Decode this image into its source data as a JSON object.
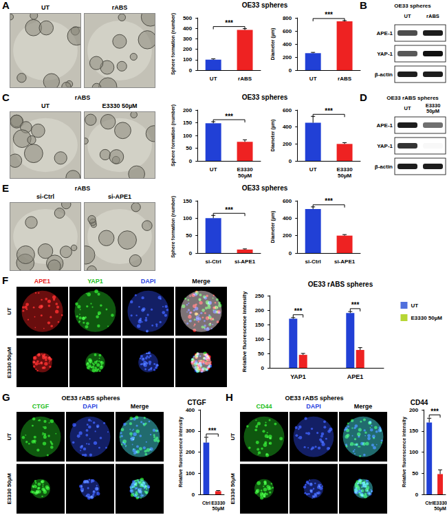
{
  "figure": {
    "A": {
      "image_columns": [
        "UT",
        "rABS"
      ],
      "chart_heading": "OE33 spheres"
    },
    "B": {
      "blot_title": "OE33 spheres",
      "lanes": [
        "UT",
        "rABS"
      ],
      "rows": [
        "APE-1",
        "YAP-1",
        "β-actin"
      ],
      "intensity": [
        [
          0.75,
          0.95
        ],
        [
          0.7,
          1.0
        ],
        [
          0.95,
          0.95
        ]
      ]
    },
    "C": {
      "image_heading": "rABS",
      "image_columns": [
        "UT",
        "E3330 50µM"
      ],
      "chart_heading": "OE33 spheres"
    },
    "D": {
      "blot_title": "OE33 rABS spheres",
      "lanes": [
        "UT",
        "E3330 50µM"
      ],
      "rows": [
        "APE-1",
        "YAP-1",
        "β-actin"
      ],
      "intensity": [
        [
          0.95,
          0.6
        ],
        [
          0.85,
          0.03
        ],
        [
          0.95,
          0.95
        ]
      ]
    },
    "E": {
      "image_heading": "rABS",
      "image_columns": [
        "si-Ctrl",
        "si-APE1"
      ],
      "chart_heading": "OE33 spheres"
    },
    "F": {
      "channels": [
        {
          "name": "APE1",
          "color": "#e82020"
        },
        {
          "name": "YAP1",
          "color": "#22c022"
        },
        {
          "name": "DAPI",
          "color": "#2a44e0"
        },
        {
          "name": "Merge",
          "color": "#000000"
        }
      ],
      "image_rows": [
        "UT",
        "E3330 50µM"
      ]
    },
    "G": {
      "image_heading": "OE33 rABS spheres",
      "channels": [
        {
          "name": "CTGF",
          "color": "#22c022"
        },
        {
          "name": "DAPI",
          "color": "#2a44e0"
        },
        {
          "name": "Merge",
          "color": "#000000"
        }
      ],
      "image_rows": [
        "UT",
        "E3330 50µM"
      ]
    },
    "H": {
      "image_heading": "OE33 rABS spheres",
      "channels": [
        {
          "name": "CD44",
          "color": "#22c022"
        },
        {
          "name": "DAPI",
          "color": "#2a44e0"
        },
        {
          "name": "Merge",
          "color": "#000000"
        }
      ],
      "image_rows": [
        "UT",
        "E3330 50µM"
      ]
    }
  },
  "chart_data": [
    {
      "type": "bar",
      "ylabel": "Sphere formation (number)",
      "categories": [
        "UT",
        "rABS"
      ],
      "values": [
        100,
        385
      ],
      "errors": [
        8,
        12
      ],
      "colors": [
        "#2140d6",
        "#ee2222"
      ],
      "ylim": [
        0,
        500
      ],
      "yticks": [
        0,
        100,
        200,
        300,
        400,
        500
      ],
      "grid": false,
      "annotations": [
        "***"
      ]
    },
    {
      "type": "bar",
      "ylabel": "Diameter (µm)",
      "categories": [
        "UT",
        "rABS"
      ],
      "values": [
        260,
        748
      ],
      "errors": [
        12,
        10
      ],
      "colors": [
        "#2140d6",
        "#ee2222"
      ],
      "ylim": [
        0,
        800
      ],
      "yticks": [
        0,
        200,
        400,
        600,
        800
      ],
      "grid": false,
      "annotations": [
        "***"
      ]
    },
    {
      "type": "bar",
      "ylabel": "Sphere formation (number)",
      "categories": [
        "UT",
        "E3330 50µM"
      ],
      "values": [
        148,
        75
      ],
      "errors": [
        6,
        8
      ],
      "colors": [
        "#2140d6",
        "#ee2222"
      ],
      "ylim": [
        0,
        200
      ],
      "yticks": [
        0,
        50,
        100,
        150,
        200
      ],
      "grid": false,
      "annotations": [
        "***"
      ]
    },
    {
      "type": "bar",
      "ylabel": "Diameter (µm)",
      "categories": [
        "UT",
        "E3330 50µM"
      ],
      "values": [
        450,
        200
      ],
      "errors": [
        75,
        15
      ],
      "colors": [
        "#2140d6",
        "#ee2222"
      ],
      "ylim": [
        0,
        600
      ],
      "yticks": [
        0,
        200,
        400,
        600
      ],
      "grid": false,
      "annotations": [
        "***"
      ]
    },
    {
      "type": "bar",
      "ylabel": "Sphere formation (number)",
      "categories": [
        "si-Ctrl",
        "si-APE1"
      ],
      "values": [
        100,
        10
      ],
      "errors": [
        8,
        2
      ],
      "colors": [
        "#2140d6",
        "#ee2222"
      ],
      "ylim": [
        0,
        150
      ],
      "yticks": [
        0,
        50,
        100,
        150
      ],
      "grid": false,
      "annotations": [
        "***"
      ]
    },
    {
      "type": "bar",
      "ylabel": "Diameter (µm)",
      "categories": [
        "si-Ctrl",
        "si-APE1"
      ],
      "values": [
        505,
        200
      ],
      "errors": [
        25,
        12
      ],
      "colors": [
        "#2140d6",
        "#ee2222"
      ],
      "ylim": [
        0,
        600
      ],
      "yticks": [
        0,
        200,
        400,
        600
      ],
      "grid": false,
      "annotations": [
        "***"
      ]
    },
    {
      "type": "bar",
      "title": "OE33 rABS spheres",
      "ylabel": "Relative fluorescence intensity",
      "categories": [
        "YAP1",
        "APE1"
      ],
      "series": [
        {
          "name": "UT",
          "color": "#2140d6",
          "values": [
            170,
            190
          ],
          "errors": [
            4,
            5
          ]
        },
        {
          "name": "E3330 50µM",
          "color": "#ee2222",
          "values": [
            45,
            62
          ],
          "errors": [
            5,
            8
          ]
        }
      ],
      "ylim": [
        0,
        250
      ],
      "yticks": [
        0,
        50,
        100,
        150,
        200,
        250
      ],
      "grid": false,
      "legend": "right",
      "annotations": [
        "***",
        "***"
      ]
    },
    {
      "type": "bar",
      "title": "CTGF",
      "ylabel": "Relative fluorescence intensity",
      "categories": [
        "Ctrl",
        "E3330 50µM"
      ],
      "values": [
        245,
        15
      ],
      "errors": [
        25,
        3
      ],
      "colors": [
        "#2140d6",
        "#ee2222"
      ],
      "ylim": [
        0,
        400
      ],
      "yticks": [
        0,
        100,
        200,
        300,
        400
      ],
      "grid": false,
      "annotations": [
        "***"
      ]
    },
    {
      "type": "bar",
      "title": "CD44",
      "ylabel": "Relative fluorescence intensity",
      "categories": [
        "Ctrl",
        "E3330 50µM"
      ],
      "values": [
        170,
        48
      ],
      "errors": [
        10,
        10
      ],
      "colors": [
        "#2140d6",
        "#ee2222"
      ],
      "ylim": [
        0,
        200
      ],
      "yticks": [
        0,
        50,
        100,
        150,
        200
      ],
      "grid": false,
      "annotations": [
        "***"
      ]
    }
  ]
}
